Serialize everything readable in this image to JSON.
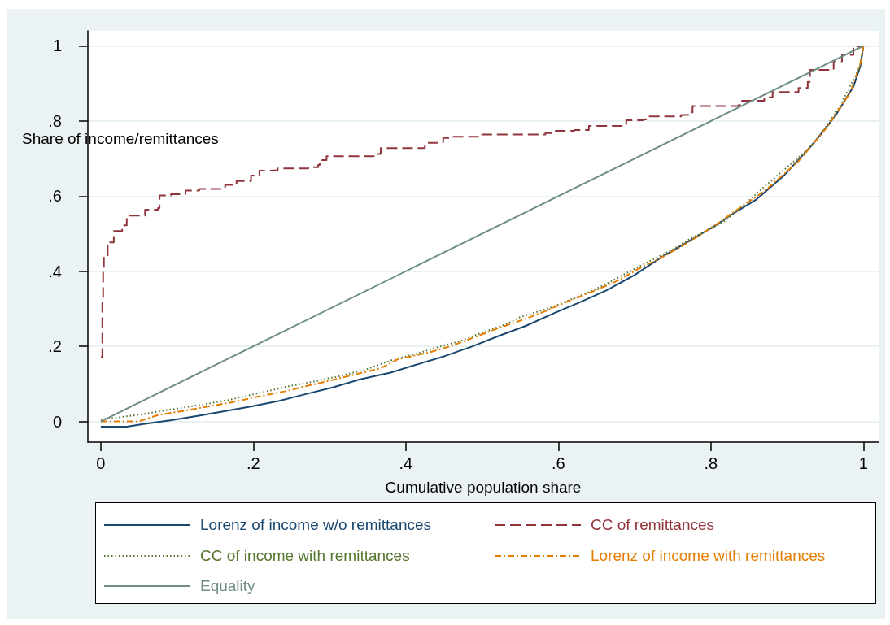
{
  "chart_data": {
    "type": "line",
    "xlabel": "Cumulative population share",
    "ylabel": "Share of income/remittances",
    "xlim": [
      -0.017,
      1.02
    ],
    "ylim": [
      -0.055,
      1.04
    ],
    "xticks": [
      0,
      {
        "value": 0.2,
        "label": ".2"
      },
      {
        "value": 0.4,
        "label": ".4"
      },
      {
        "value": 0.6,
        "label": ".6"
      },
      {
        "value": 0.8,
        "label": ".8"
      },
      1
    ],
    "yticks": [
      0,
      {
        "value": 0.2,
        "label": ".2"
      },
      {
        "value": 0.4,
        "label": ".4"
      },
      {
        "value": 0.6,
        "label": ".6"
      },
      {
        "value": 0.8,
        "label": ".8"
      },
      1
    ],
    "grid": "y",
    "legend": "bottom",
    "marker": "none",
    "series": [
      {
        "name": "Lorenz of income w/o remittances",
        "color": "#1a476f",
        "line_style": "solid",
        "x": [
          0,
          0.034,
          0.056,
          0.091,
          0.127,
          0.162,
          0.198,
          0.234,
          0.269,
          0.305,
          0.34,
          0.38,
          0.415,
          0.451,
          0.486,
          0.522,
          0.558,
          0.593,
          0.629,
          0.664,
          0.7,
          0.735,
          0.771,
          0.807,
          0.828,
          0.859,
          0.896,
          0.934,
          0.964,
          0.987,
          0.996,
          1
        ],
        "values": [
          -0.014,
          -0.014,
          -0.007,
          0.003,
          0.015,
          0.027,
          0.04,
          0.055,
          0.073,
          0.091,
          0.112,
          0.13,
          0.152,
          0.174,
          0.199,
          0.228,
          0.255,
          0.287,
          0.318,
          0.35,
          0.39,
          0.437,
          0.48,
          0.523,
          0.552,
          0.59,
          0.655,
          0.739,
          0.816,
          0.892,
          0.946,
          1
        ]
      },
      {
        "name": "CC of remittances",
        "color": "#90353b",
        "type": "step",
        "line_style": "dashed",
        "x": [
          0,
          0.002,
          0.003,
          0.004,
          0.009,
          0.017,
          0.028,
          0.034,
          0.054,
          0.058,
          0.075,
          0.077,
          0.092,
          0.111,
          0.129,
          0.156,
          0.163,
          0.178,
          0.193,
          0.197,
          0.208,
          0.222,
          0.232,
          0.272,
          0.285,
          0.287,
          0.296,
          0.358,
          0.367,
          0.425,
          0.449,
          0.459,
          0.5,
          0.583,
          0.595,
          0.621,
          0.64,
          0.685,
          0.689,
          0.711,
          0.715,
          0.761,
          0.772,
          0.776,
          0.836,
          0.838,
          0.868,
          0.87,
          0.881,
          0.915,
          0.927,
          0.93,
          0.959,
          0.961,
          0.972,
          0.987,
          1
        ],
        "values": [
          0.171,
          0.322,
          0.4,
          0.44,
          0.477,
          0.507,
          0.522,
          0.548,
          0.548,
          0.564,
          0.568,
          0.602,
          0.605,
          0.615,
          0.619,
          0.62,
          0.63,
          0.64,
          0.64,
          0.655,
          0.668,
          0.669,
          0.674,
          0.677,
          0.683,
          0.696,
          0.706,
          0.712,
          0.728,
          0.742,
          0.755,
          0.758,
          0.764,
          0.768,
          0.774,
          0.776,
          0.787,
          0.791,
          0.802,
          0.804,
          0.812,
          0.816,
          0.823,
          0.84,
          0.842,
          0.854,
          0.854,
          0.863,
          0.877,
          0.888,
          0.904,
          0.936,
          0.939,
          0.959,
          0.976,
          0.999,
          1
        ]
      },
      {
        "name": "CC of income with remittances",
        "color": "#55752f",
        "line_style": "dotted",
        "x": [
          0,
          0.054,
          0.092,
          0.137,
          0.167,
          0.204,
          0.249,
          0.279,
          0.313,
          0.347,
          0.384,
          0.412,
          0.444,
          0.47,
          0.49,
          0.508,
          0.533,
          0.55,
          0.59,
          0.643,
          0.671,
          0.689,
          0.712,
          0.75,
          0.773,
          0.796,
          0.816,
          0.851,
          0.87,
          0.927,
          0.945,
          0.968,
          0.996,
          1
        ],
        "values": [
          0.005,
          0.019,
          0.032,
          0.046,
          0.057,
          0.074,
          0.095,
          0.106,
          0.121,
          0.138,
          0.165,
          0.179,
          0.199,
          0.213,
          0.229,
          0.242,
          0.26,
          0.278,
          0.303,
          0.347,
          0.375,
          0.395,
          0.419,
          0.458,
          0.487,
          0.509,
          0.53,
          0.59,
          0.625,
          0.724,
          0.766,
          0.835,
          0.946,
          1
        ]
      },
      {
        "name": "Lorenz of income with remittances",
        "color": "#e37e00",
        "line_style": "dashdot",
        "x": [
          0,
          0.049,
          0.075,
          0.108,
          0.141,
          0.172,
          0.206,
          0.241,
          0.269,
          0.301,
          0.333,
          0.366,
          0.39,
          0.429,
          0.461,
          0.518,
          0.554,
          0.582,
          0.614,
          0.646,
          0.675,
          0.703,
          0.732,
          0.764,
          0.789,
          0.814,
          0.828,
          0.87,
          0.915,
          0.953,
          0.983,
          0.996,
          1
        ],
        "values": [
          0,
          0,
          0.017,
          0.028,
          0.04,
          0.051,
          0.066,
          0.08,
          0.094,
          0.109,
          0.125,
          0.141,
          0.166,
          0.183,
          0.202,
          0.246,
          0.271,
          0.293,
          0.321,
          0.347,
          0.372,
          0.404,
          0.433,
          0.469,
          0.501,
          0.534,
          0.555,
          0.613,
          0.693,
          0.785,
          0.877,
          0.953,
          1
        ]
      },
      {
        "name": "Equality",
        "color": "#6e8e84",
        "line_style": "solid",
        "x": [
          0,
          1
        ],
        "values": [
          0,
          1
        ]
      }
    ]
  }
}
